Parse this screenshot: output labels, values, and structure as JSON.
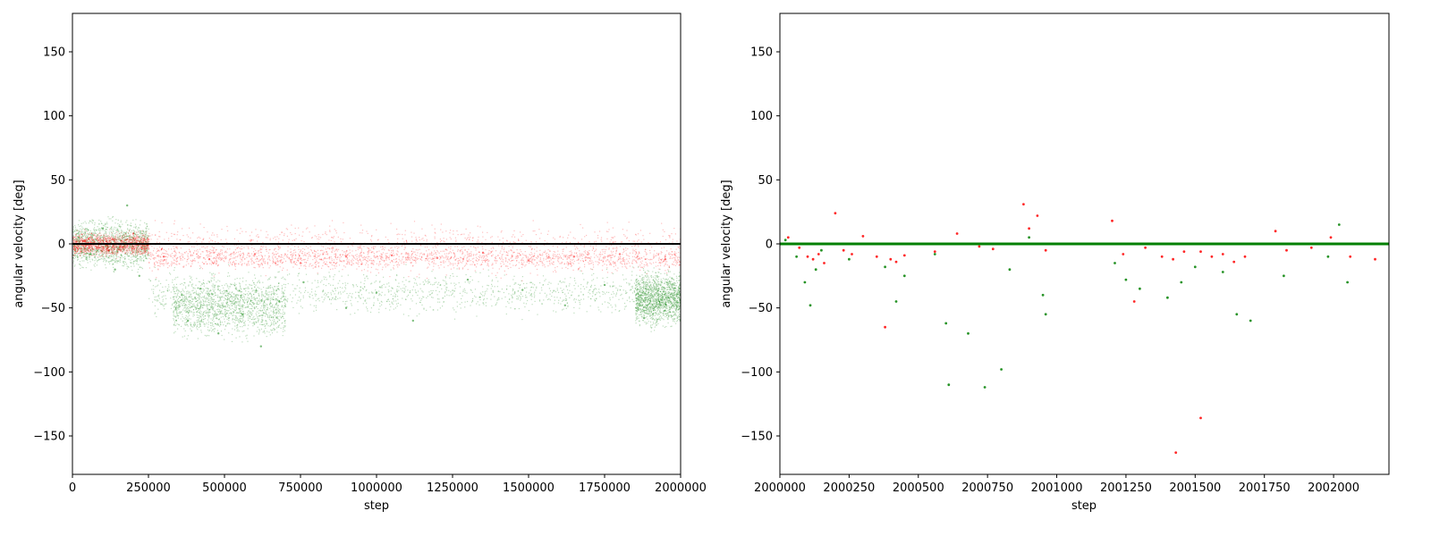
{
  "chart_data": [
    {
      "type": "scatter",
      "xlabel": "step",
      "ylabel": "angular velocity [deg]",
      "xlim": [
        0,
        2000000
      ],
      "ylim": [
        -180,
        180
      ],
      "xticks": [
        0,
        250000,
        500000,
        750000,
        1000000,
        1250000,
        1500000,
        1750000,
        2000000
      ],
      "xtick_labels": [
        "0",
        "250000",
        "500000",
        "750000",
        "1000000",
        "1250000",
        "1500000",
        "1750000",
        "2000000"
      ],
      "yticks": [
        -150,
        -100,
        -50,
        0,
        50,
        100,
        150
      ],
      "ytick_labels": [
        "−150",
        "−100",
        "−50",
        "0",
        "50",
        "100",
        "150"
      ],
      "grid": false,
      "series": [
        {
          "color": "#008000",
          "values": [
            [
              20000,
              5
            ],
            [
              60000,
              -8
            ],
            [
              100000,
              12
            ],
            [
              140000,
              -20
            ],
            [
              180000,
              30
            ],
            [
              220000,
              -25
            ],
            [
              360000,
              -40
            ],
            [
              380000,
              -60
            ],
            [
              420000,
              -35
            ],
            [
              480000,
              -70
            ],
            [
              560000,
              -55
            ],
            [
              620000,
              -80
            ],
            [
              680000,
              -45
            ],
            [
              760000,
              -30
            ],
            [
              900000,
              -50
            ],
            [
              1000000,
              -38
            ],
            [
              1120000,
              -60
            ],
            [
              1300000,
              -28
            ],
            [
              1480000,
              -36
            ],
            [
              1620000,
              -48
            ],
            [
              1750000,
              -32
            ],
            [
              1880000,
              -58
            ],
            [
              1960000,
              -42
            ]
          ],
          "bands": [
            {
              "x": [
                0,
                250000
              ],
              "y": [
                -25,
                25
              ]
            },
            {
              "x": [
                330000,
                700000
              ],
              "y": [
                -80,
                -20
              ]
            },
            {
              "x": [
                250000,
                2000000
              ],
              "y": [
                -60,
                -15
              ]
            },
            {
              "x": [
                1850000,
                2000000
              ],
              "y": [
                -70,
                -15
              ]
            }
          ]
        },
        {
          "color": "#ff0000",
          "values": [
            [
              40000,
              2
            ],
            [
              120000,
              -5
            ],
            [
              200000,
              8
            ],
            [
              300000,
              -10
            ],
            [
              450000,
              -12
            ],
            [
              600000,
              -8
            ],
            [
              750000,
              -15
            ],
            [
              900000,
              -10
            ],
            [
              1050000,
              -9
            ],
            [
              1200000,
              -11
            ],
            [
              1350000,
              -7
            ],
            [
              1500000,
              -13
            ],
            [
              1650000,
              -10
            ],
            [
              1800000,
              -8
            ],
            [
              1950000,
              -12
            ]
          ],
          "bands": [
            {
              "x": [
                250000,
                2000000
              ],
              "y": [
                -22,
                0
              ]
            },
            {
              "x": [
                250000,
                2000000
              ],
              "y": [
                -30,
                22
              ]
            },
            {
              "x": [
                0,
                250000
              ],
              "y": [
                -12,
                12
              ]
            }
          ]
        },
        {
          "color": "#000000",
          "style": "line",
          "values": [
            [
              0,
              0
            ],
            [
              2000000,
              0
            ]
          ]
        }
      ]
    },
    {
      "type": "scatter",
      "xlabel": "step",
      "ylabel": "angular velocity [deg]",
      "xlim": [
        2000000,
        2002200
      ],
      "ylim": [
        -180,
        180
      ],
      "xticks": [
        2000000,
        2000250,
        2000500,
        2000750,
        2001000,
        2001250,
        2001500,
        2001750,
        2002000
      ],
      "xtick_labels": [
        "2000000",
        "2000250",
        "2000500",
        "2000750",
        "2001000",
        "2001250",
        "2001500",
        "2001750",
        "2002000"
      ],
      "yticks": [
        -150,
        -100,
        -50,
        0,
        50,
        100,
        150
      ],
      "ytick_labels": [
        "−150",
        "−100",
        "−50",
        "0",
        "50",
        "100",
        "150"
      ],
      "grid": false,
      "series": [
        {
          "color": "#008000",
          "values": [
            [
              2000020,
              3
            ],
            [
              2000060,
              -10
            ],
            [
              2000090,
              -30
            ],
            [
              2000110,
              -48
            ],
            [
              2000130,
              -20
            ],
            [
              2000150,
              -5
            ],
            [
              2000250,
              -12
            ],
            [
              2000380,
              -18
            ],
            [
              2000420,
              -45
            ],
            [
              2000450,
              -25
            ],
            [
              2000560,
              -8
            ],
            [
              2000600,
              -62
            ],
            [
              2000610,
              -110
            ],
            [
              2000680,
              -70
            ],
            [
              2000740,
              -112
            ],
            [
              2000800,
              -98
            ],
            [
              2000830,
              -20
            ],
            [
              2000900,
              5
            ],
            [
              2000950,
              -40
            ],
            [
              2000960,
              -55
            ],
            [
              2001210,
              -15
            ],
            [
              2001250,
              -28
            ],
            [
              2001300,
              -35
            ],
            [
              2001400,
              -42
            ],
            [
              2001450,
              -30
            ],
            [
              2001500,
              -18
            ],
            [
              2001600,
              -22
            ],
            [
              2001650,
              -55
            ],
            [
              2001700,
              -60
            ],
            [
              2001820,
              -25
            ],
            [
              2001980,
              -10
            ],
            [
              2002020,
              15
            ],
            [
              2002050,
              -30
            ]
          ]
        },
        {
          "color": "#ff0000",
          "values": [
            [
              2000030,
              5
            ],
            [
              2000070,
              -3
            ],
            [
              2000100,
              -10
            ],
            [
              2000120,
              -12
            ],
            [
              2000140,
              -8
            ],
            [
              2000160,
              -15
            ],
            [
              2000200,
              24
            ],
            [
              2000230,
              -5
            ],
            [
              2000260,
              -8
            ],
            [
              2000300,
              6
            ],
            [
              2000350,
              -10
            ],
            [
              2000400,
              -12
            ],
            [
              2000420,
              -14
            ],
            [
              2000450,
              -9
            ],
            [
              2000560,
              -6
            ],
            [
              2000640,
              8
            ],
            [
              2000720,
              -2
            ],
            [
              2000770,
              -4
            ],
            [
              2000880,
              31
            ],
            [
              2000900,
              12
            ],
            [
              2000930,
              22
            ],
            [
              2000960,
              -5
            ],
            [
              2001200,
              18
            ],
            [
              2001240,
              -8
            ],
            [
              2001280,
              -45
            ],
            [
              2001320,
              -3
            ],
            [
              2001380,
              -10
            ],
            [
              2001420,
              -12
            ],
            [
              2001460,
              -6
            ],
            [
              2001520,
              -6
            ],
            [
              2001560,
              -10
            ],
            [
              2001600,
              -8
            ],
            [
              2001640,
              -14
            ],
            [
              2001680,
              -10
            ],
            [
              2001790,
              10
            ],
            [
              2001830,
              -5
            ],
            [
              2001920,
              -3
            ],
            [
              2001990,
              5
            ],
            [
              2002060,
              -10
            ],
            [
              2002150,
              -12
            ],
            [
              2001520,
              -136
            ],
            [
              2001430,
              -163
            ],
            [
              2000380,
              -65
            ]
          ]
        },
        {
          "color": "#008000",
          "style": "line",
          "values": [
            [
              2000000,
              0
            ],
            [
              2002200,
              0
            ]
          ]
        }
      ]
    }
  ]
}
